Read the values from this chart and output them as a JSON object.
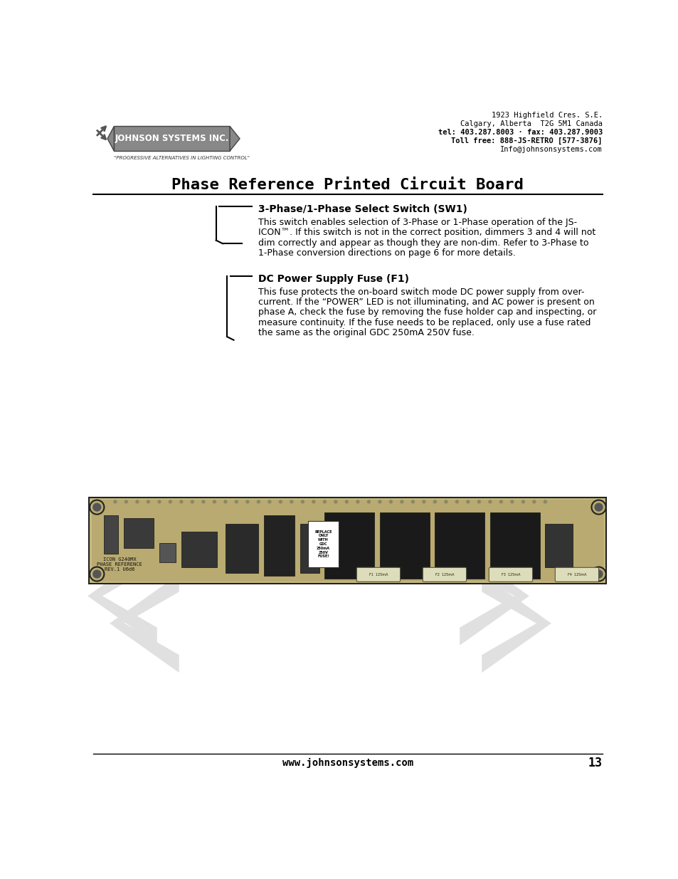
{
  "bg_color": "#ffffff",
  "page_width": 9.54,
  "page_height": 12.35,
  "header": {
    "logo_text": "JOHNSON SYSTEMS INC.",
    "logo_tagline": "\"PROGRESSIVE ALTERNATIVES IN LIGHTING CONTROL\"",
    "address_lines": [
      "1923 Highfield Cres. S.E.",
      "Calgary, Alberta  T2G 5M1 Canada",
      "tel: 403.287.8003 · fax: 403.287.9003",
      "Toll free: 888-JS-RETRO [577-3876]",
      "Info@johnsonsystems.com"
    ],
    "address_bold": [
      2,
      3
    ]
  },
  "title": "Phase Reference Printed Circuit Board",
  "section1_heading": "3-Phase/1-Phase Select Switch (SW1)",
  "section1_lines": [
    "This switch enables selection of 3-Phase or 1-Phase operation of the JS-",
    "ICON™. If this switch is not in the correct position, dimmers 3 and 4 will not",
    "dim correctly and appear as though they are non-dim. Refer to 3-Phase to",
    "1-Phase conversion directions on page 6 for more details."
  ],
  "section2_heading": "DC Power Supply Fuse (F1)",
  "section2_lines": [
    "This fuse protects the on-board switch mode DC power supply from over-",
    "current. If the “POWER” LED is not illuminating, and AC power is present on",
    "phase A, check the fuse by removing the fuse holder cap and inspecting, or",
    "measure continuity. If the fuse needs to be replaced, only use a fuse rated",
    "the same as the original GDC 250mA 250V fuse."
  ],
  "footer_url": "www.johnsonsystems.com",
  "footer_page": "13",
  "watermark_color": "#e0e0e0",
  "bracket_color": "#000000",
  "title_underline_color": "#000000",
  "pcb_label": "ICON G240MX\nPHASE REFERENCE\nREV.1 U6d6"
}
